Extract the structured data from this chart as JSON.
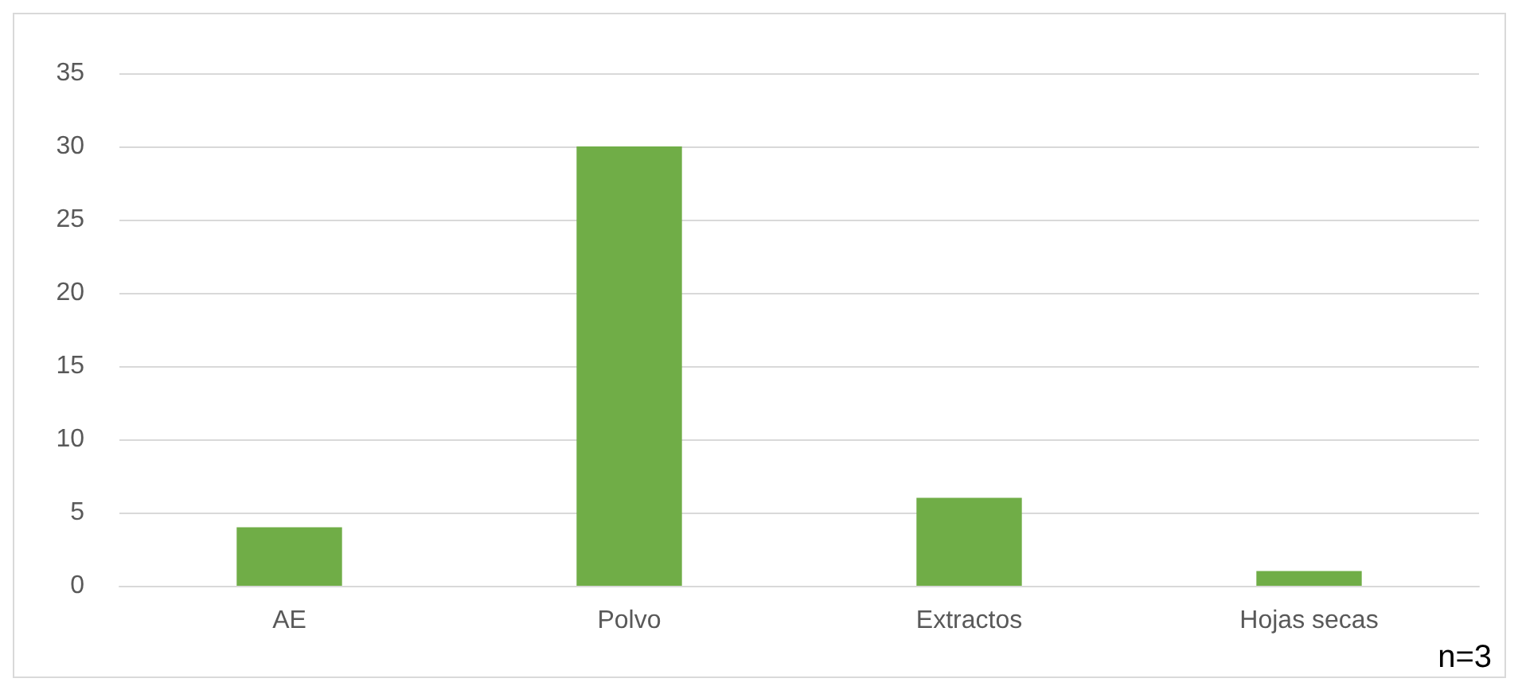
{
  "chart_data": {
    "type": "bar",
    "categories": [
      "AE",
      "Polvo",
      "Extractos",
      "Hojas secas"
    ],
    "values": [
      4,
      30,
      6,
      1
    ],
    "color": "#70ad47",
    "ylim": [
      0,
      35
    ],
    "yticks": [
      0,
      5,
      10,
      15,
      20,
      25,
      30,
      35
    ],
    "grid": "y",
    "annotations": [
      "n=3"
    ]
  }
}
